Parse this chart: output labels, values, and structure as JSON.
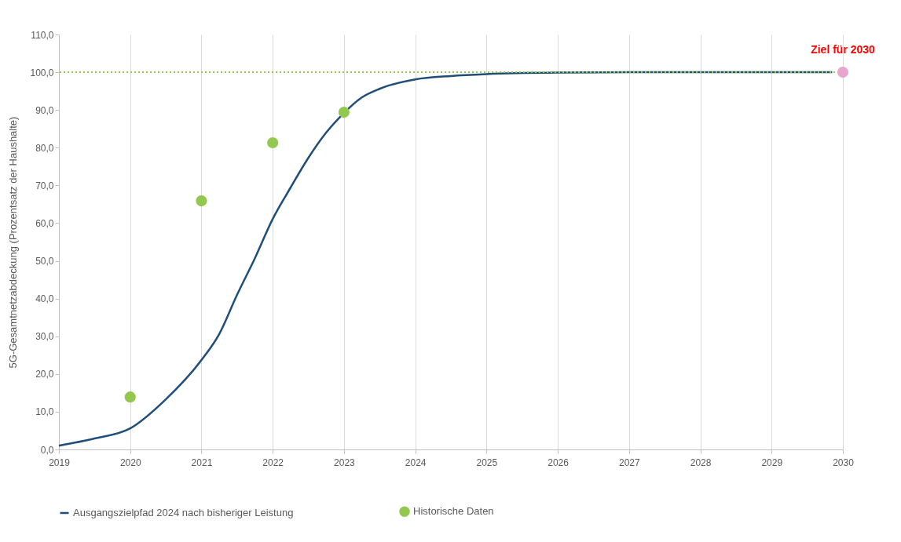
{
  "chart_data": {
    "type": "line",
    "ylabel": "5G-Gesamtnetzabdeckung (Prozentsatz der Haushalte)",
    "xlim": [
      2019,
      2030
    ],
    "xticks": [
      2019,
      2020,
      2021,
      2022,
      2023,
      2024,
      2025,
      2026,
      2027,
      2028,
      2029,
      2030
    ],
    "ylim": [
      0,
      110
    ],
    "yticks": [
      {
        "value": 0,
        "label": "0,0"
      },
      {
        "value": 10,
        "label": "10,0"
      },
      {
        "value": 20,
        "label": "20,0"
      },
      {
        "value": 30,
        "label": "30,0"
      },
      {
        "value": 40,
        "label": "40,0"
      },
      {
        "value": 50,
        "label": "50,0"
      },
      {
        "value": 60,
        "label": "60,0"
      },
      {
        "value": 70,
        "label": "70,0"
      },
      {
        "value": 80,
        "label": "80,0"
      },
      {
        "value": 90,
        "label": "90,0"
      },
      {
        "value": 100,
        "label": "100,0"
      },
      {
        "value": 110,
        "label": "110,0"
      }
    ],
    "grid": "x",
    "legend": "bottom",
    "series": [
      {
        "name": "Ausgangszielpfad 2024 nach bisheriger Leistung",
        "color": "#1f4e79",
        "x": [
          2019,
          2019.5,
          2020,
          2020.5,
          2021,
          2021.25,
          2021.5,
          2021.75,
          2022,
          2022.25,
          2022.5,
          2022.75,
          2023,
          2023.25,
          2023.5,
          2024,
          2024.5,
          2025,
          2026,
          2027,
          2028,
          2029,
          2029.85
        ],
        "values": [
          1.0,
          2.9,
          5.6,
          13.3,
          23.7,
          30.6,
          41.0,
          50.7,
          61.1,
          69.4,
          77.3,
          84.0,
          89.2,
          93.3,
          95.6,
          98.1,
          99.0,
          99.5,
          99.9,
          100,
          100,
          100,
          100
        ]
      },
      {
        "name": "Historische Daten",
        "type": "scatter",
        "color": "#92c84e",
        "x": [
          2020,
          2021,
          2022,
          2023
        ],
        "values": [
          13.9,
          65.9,
          81.3,
          89.4
        ]
      },
      {
        "type": "scatter",
        "color": "#e8a6cf",
        "x": [
          2030
        ],
        "values": [
          100
        ]
      }
    ],
    "ref_lines": [
      {
        "axis": "y",
        "value": 100,
        "color": "#92c84e",
        "line_style": "dotted"
      }
    ],
    "annotations": [
      {
        "text": "Ziel für 2030",
        "x": 2030,
        "y": 100
      }
    ]
  }
}
